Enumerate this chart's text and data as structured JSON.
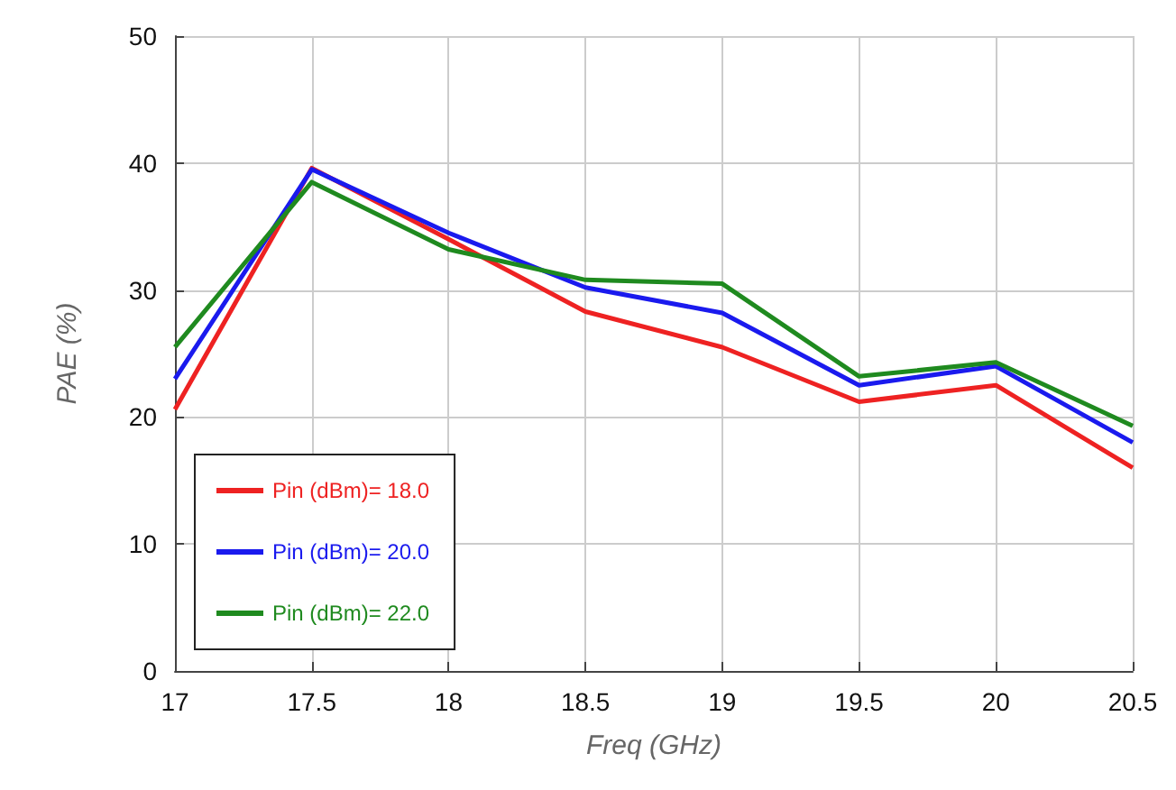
{
  "chart_data": {
    "type": "line",
    "xlabel": "Freq (GHz)",
    "ylabel": "PAE (%)",
    "x": [
      17,
      17.5,
      18,
      18.5,
      19,
      19.5,
      20,
      20.5
    ],
    "series": [
      {
        "name": "Pin (dBm)= 18.0",
        "color": "#ee2222",
        "values": [
          20.6,
          39.6,
          34,
          28.3,
          25.5,
          21.2,
          22.5,
          16
        ]
      },
      {
        "name": "Pin (dBm)= 20.0",
        "color": "#1a1aee",
        "values": [
          23,
          39.5,
          34.5,
          30.2,
          28.2,
          22.5,
          24,
          18
        ]
      },
      {
        "name": "Pin (dBm)= 22.0",
        "color": "#1f8a1f",
        "values": [
          25.5,
          38.5,
          33.2,
          30.8,
          30.5,
          23.2,
          24.3,
          19.3
        ]
      }
    ],
    "xlim": [
      17,
      20.5
    ],
    "xticks": [
      17,
      17.5,
      18,
      18.5,
      19,
      19.5,
      20,
      20.5
    ],
    "ylim": [
      0,
      50
    ],
    "yticks": [
      0,
      10,
      20,
      30,
      40,
      50
    ],
    "grid": true,
    "legend": "bottom left",
    "marker": "none",
    "line_style": "solid"
  }
}
